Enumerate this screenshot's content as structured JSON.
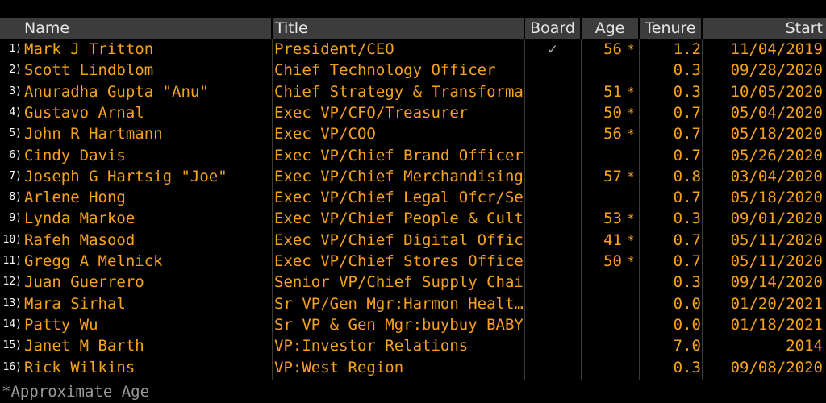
{
  "columns": {
    "name": "Name",
    "title": "Title",
    "board": "Board",
    "age": "Age",
    "tenure": "Tenure",
    "start": "Start"
  },
  "rows": [
    {
      "num": "1)",
      "name": "Mark J Tritton",
      "title": "President/CEO",
      "board": "✓",
      "age": "56",
      "approx": "*",
      "tenure": "1.2",
      "start": "11/04/2019"
    },
    {
      "num": "2)",
      "name": "Scott Lindblom",
      "title": "Chief Technology Officer",
      "board": "",
      "age": "",
      "approx": "",
      "tenure": "0.3",
      "start": "09/28/2020"
    },
    {
      "num": "3)",
      "name": "Anuradha Gupta \"Anu\"",
      "title": "Chief Strategy & Transforma…",
      "board": "",
      "age": "51",
      "approx": "*",
      "tenure": "0.3",
      "start": "10/05/2020"
    },
    {
      "num": "4)",
      "name": "Gustavo Arnal",
      "title": "Exec VP/CFO/Treasurer",
      "board": "",
      "age": "50",
      "approx": "*",
      "tenure": "0.7",
      "start": "05/04/2020"
    },
    {
      "num": "5)",
      "name": "John R Hartmann",
      "title": "Exec VP/COO",
      "board": "",
      "age": "56",
      "approx": "*",
      "tenure": "0.7",
      "start": "05/18/2020"
    },
    {
      "num": "6)",
      "name": "Cindy Davis",
      "title": "Exec VP/Chief Brand Officer/…",
      "board": "",
      "age": "",
      "approx": "",
      "tenure": "0.7",
      "start": "05/26/2020"
    },
    {
      "num": "7)",
      "name": "Joseph G Hartsig \"Joe\"",
      "title": "Exec VP/Chief Merchandising…",
      "board": "",
      "age": "57",
      "approx": "*",
      "tenure": "0.8",
      "start": "03/04/2020"
    },
    {
      "num": "8)",
      "name": "Arlene Hong",
      "title": "Exec VP/Chief Legal Ofcr/Se…",
      "board": "",
      "age": "",
      "approx": "",
      "tenure": "0.7",
      "start": "05/18/2020"
    },
    {
      "num": "9)",
      "name": "Lynda Markoe",
      "title": "Exec VP/Chief People & Cult…",
      "board": "",
      "age": "53",
      "approx": "*",
      "tenure": "0.3",
      "start": "09/01/2020"
    },
    {
      "num": "10)",
      "name": "Rafeh Masood",
      "title": "Exec VP/Chief Digital Officer",
      "board": "",
      "age": "41",
      "approx": "*",
      "tenure": "0.7",
      "start": "05/11/2020"
    },
    {
      "num": "11)",
      "name": "Gregg A Melnick",
      "title": "Exec VP/Chief Stores Officer",
      "board": "",
      "age": "50",
      "approx": "*",
      "tenure": "0.7",
      "start": "05/11/2020"
    },
    {
      "num": "12)",
      "name": "Juan Guerrero",
      "title": "Senior VP/Chief Supply Chai…",
      "board": "",
      "age": "",
      "approx": "",
      "tenure": "0.3",
      "start": "09/14/2020"
    },
    {
      "num": "13)",
      "name": "Mara Sirhal",
      "title": "Sr VP/Gen Mgr:Harmon Healt…",
      "board": "",
      "age": "",
      "approx": "",
      "tenure": "0.0",
      "start": "01/20/2021"
    },
    {
      "num": "14)",
      "name": "Patty Wu",
      "title": "Sr VP & Gen Mgr:buybuy BABY",
      "board": "",
      "age": "",
      "approx": "",
      "tenure": "0.0",
      "start": "01/18/2021"
    },
    {
      "num": "15)",
      "name": "Janet M Barth",
      "title": "VP:Investor Relations",
      "board": "",
      "age": "",
      "approx": "",
      "tenure": "7.0",
      "start": "2014"
    },
    {
      "num": "16)",
      "name": "Rick Wilkins",
      "title": "VP:West Region",
      "board": "",
      "age": "",
      "approx": "",
      "tenure": "0.3",
      "start": "09/08/2020"
    }
  ],
  "footnote": "*Approximate Age",
  "colors": {
    "text": "#f7a21b",
    "header_bg": "#3c3c3c",
    "header_text": "#e6e6e6",
    "background": "#000000",
    "footnote": "#9a9a9a"
  }
}
